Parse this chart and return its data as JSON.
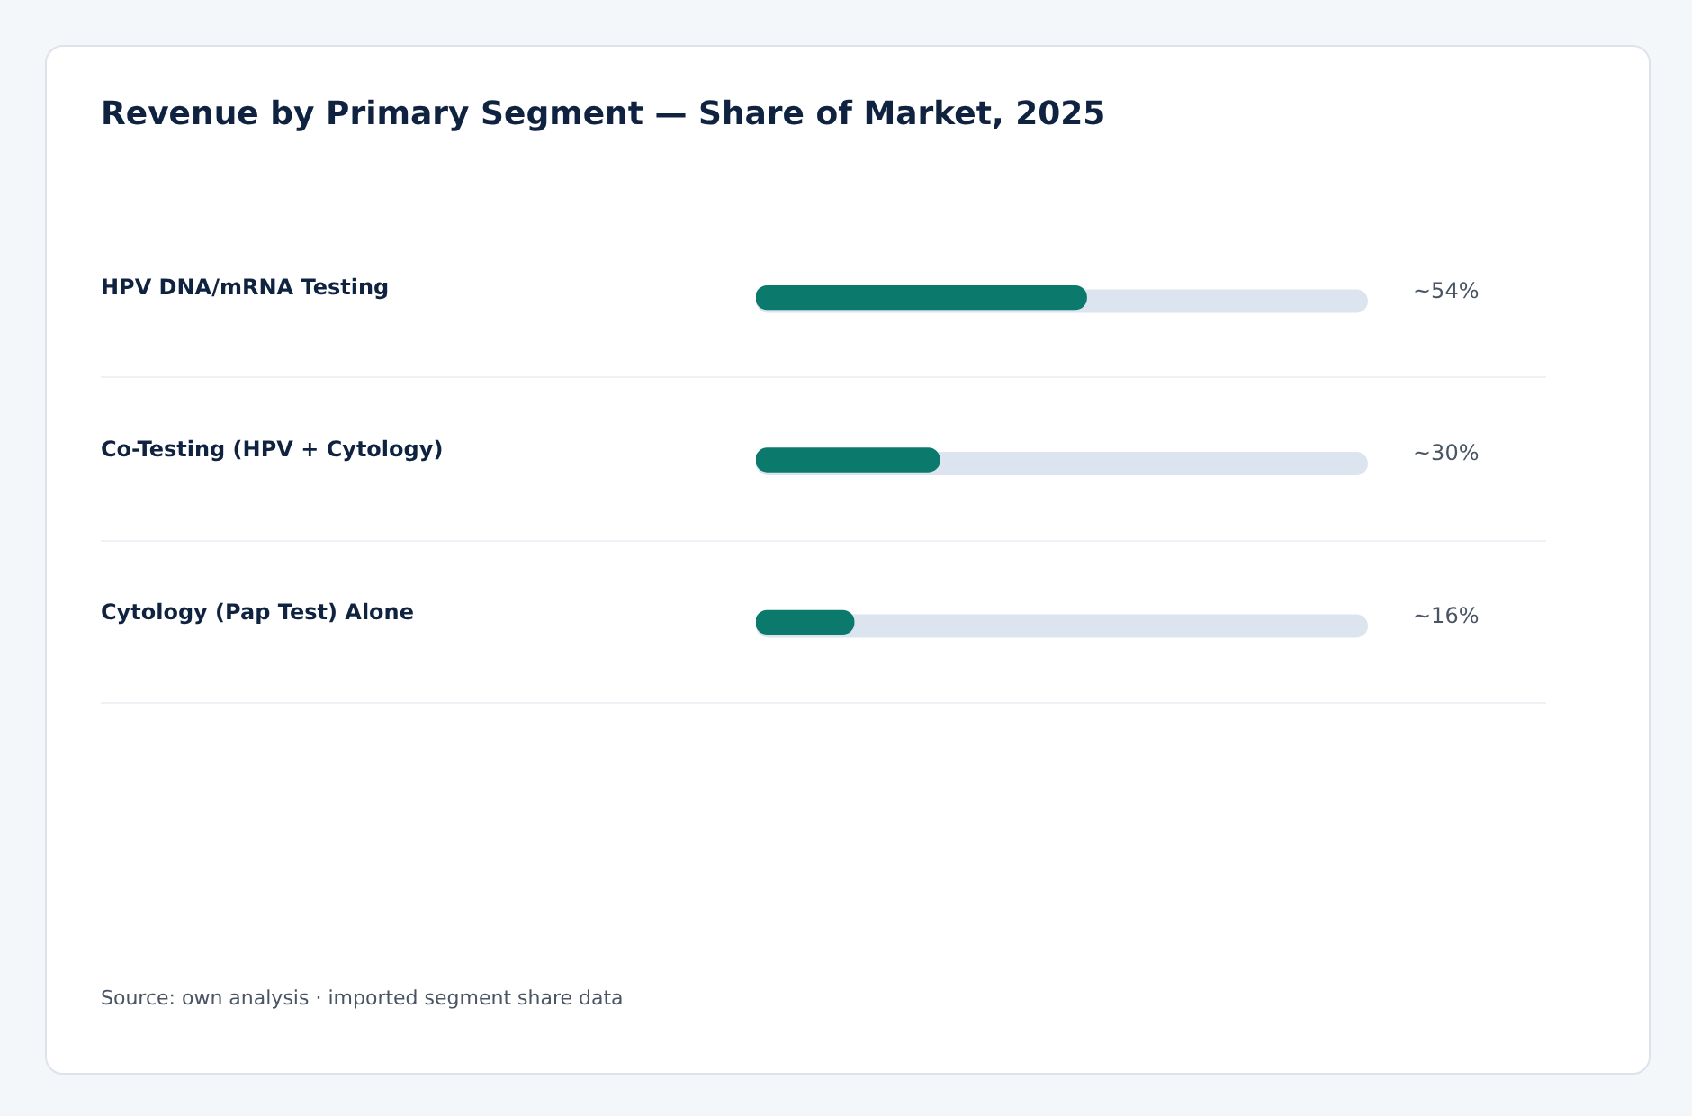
{
  "chart_data": {
    "type": "bar",
    "orientation": "horizontal",
    "title": "Revenue by Primary Segment — Share of Market, 2025",
    "categories": [
      "HPV DNA/mRNA Testing",
      "Co-Testing (HPV + Cytology)",
      "Cytology (Pap Test) Alone"
    ],
    "values": [
      54,
      30,
      16
    ],
    "color": "#0b7a6c",
    "value_labels": [
      "~54%",
      "~30%",
      "~16%"
    ],
    "xlim": [
      0,
      100
    ],
    "tick_labels": "y",
    "grid": "y",
    "annotations": [
      "Source: own analysis · imported segment share data"
    ]
  }
}
